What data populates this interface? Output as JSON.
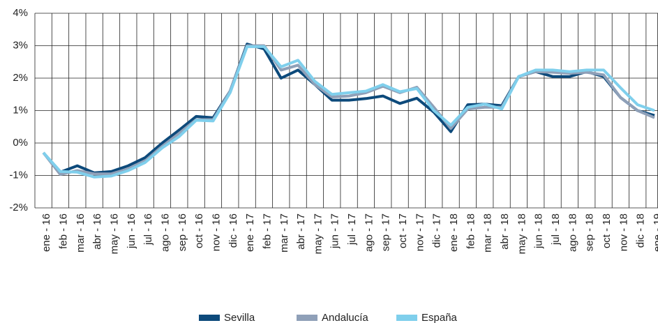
{
  "chart_data": {
    "type": "line",
    "categories": [
      "ene - 16",
      "feb - 16",
      "mar - 16",
      "abr - 16",
      "may - 16",
      "jun - 16",
      "jul - 16",
      "ago - 16",
      "sep - 16",
      "oct - 16",
      "nov - 16",
      "dic - 16",
      "ene - 17",
      "feb - 17",
      "mar - 17",
      "abr - 17",
      "may - 17",
      "jun - 17",
      "jul - 17",
      "ago - 17",
      "sep - 17",
      "oct - 17",
      "nov - 17",
      "dic - 17",
      "ene - 18",
      "feb - 18",
      "mar - 18",
      "abr - 18",
      "may - 18",
      "jun - 18",
      "jul - 18",
      "ago - 18",
      "sep - 18",
      "oct - 18",
      "nov - 18",
      "dic - 18",
      "ene - 19"
    ],
    "series": [
      {
        "name": "Sevilla",
        "color": "#0d4a7b",
        "values": [
          -0.3,
          -0.9,
          -0.7,
          -0.92,
          -0.88,
          -0.7,
          -0.45,
          0,
          0.4,
          0.82,
          0.78,
          1.6,
          3.05,
          2.9,
          2.0,
          2.25,
          1.8,
          1.32,
          1.32,
          1.37,
          1.45,
          1.22,
          1.38,
          0.95,
          0.35,
          1.18,
          1.2,
          1.15,
          2.05,
          2.2,
          2.05,
          2.05,
          2.2,
          2.05,
          1.4,
          1.0,
          0.85
        ]
      },
      {
        "name": "Andalucía",
        "color": "#8fa0b8",
        "values": [
          -0.3,
          -0.97,
          -0.85,
          -0.95,
          -0.95,
          -0.8,
          -0.55,
          -0.1,
          0.3,
          0.72,
          0.72,
          1.6,
          3.0,
          3.0,
          2.25,
          2.4,
          1.8,
          1.42,
          1.45,
          1.55,
          1.75,
          1.55,
          1.72,
          1.1,
          0.45,
          1.05,
          1.1,
          1.1,
          2.05,
          2.2,
          2.18,
          2.15,
          2.18,
          2.1,
          1.4,
          1.0,
          0.78
        ]
      },
      {
        "name": "España",
        "color": "#7fcfec",
        "values": [
          -0.3,
          -0.88,
          -0.9,
          -1.05,
          -1.02,
          -0.85,
          -0.6,
          -0.15,
          0.2,
          0.7,
          0.68,
          1.55,
          2.97,
          2.97,
          2.35,
          2.55,
          1.9,
          1.5,
          1.55,
          1.6,
          1.8,
          1.58,
          1.68,
          1.0,
          0.55,
          1.1,
          1.2,
          1.05,
          2.05,
          2.25,
          2.25,
          2.2,
          2.25,
          2.25,
          1.7,
          1.18,
          1.0
        ]
      }
    ],
    "ylim": [
      -2,
      4
    ],
    "yticks": [
      {
        "value": -2,
        "label": "-2%"
      },
      {
        "value": -1,
        "label": "-1%"
      },
      {
        "value": 0,
        "label": "0%"
      },
      {
        "value": 1,
        "label": "1%"
      },
      {
        "value": 2,
        "label": "2%"
      },
      {
        "value": 3,
        "label": "3%"
      },
      {
        "value": 4,
        "label": "4%"
      }
    ],
    "grid": true,
    "legend": "bottom"
  }
}
